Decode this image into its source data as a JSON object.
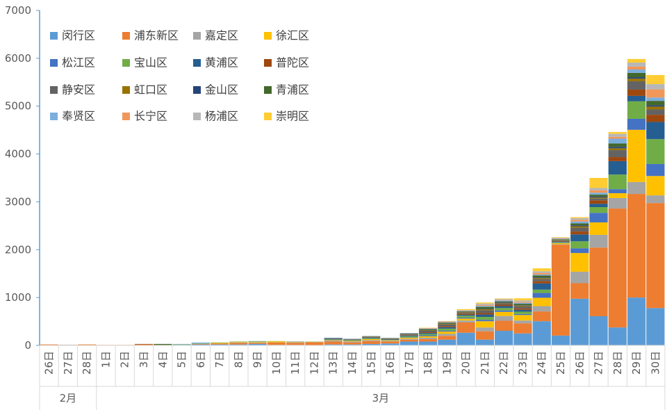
{
  "chart_data": {
    "type": "stacked_bar",
    "ylim": [
      0,
      7000
    ],
    "yticks": [
      0,
      1000,
      2000,
      3000,
      4000,
      5000,
      6000,
      7000
    ],
    "legend_position": "upper-left",
    "category_groups": [
      {
        "name": "2月",
        "categories": [
          "26日",
          "27日",
          "28日"
        ]
      },
      {
        "name": "3月",
        "categories": [
          "1日",
          "2日",
          "3日",
          "4日",
          "5日",
          "6日",
          "7日",
          "8日",
          "9日",
          "10日",
          "11日",
          "12日",
          "13日",
          "14日",
          "15日",
          "16日",
          "17日",
          "18日",
          "19日",
          "20日",
          "21日",
          "22日",
          "23日",
          "24日",
          "25日",
          "26日",
          "27日",
          "28日",
          "29日",
          "30日"
        ]
      }
    ],
    "series": [
      {
        "name": "闵行区",
        "color": "#5B9BD5",
        "values": [
          0,
          0,
          0,
          0,
          0,
          0,
          0,
          10,
          20,
          20,
          20,
          30,
          10,
          10,
          5,
          20,
          20,
          30,
          40,
          80,
          80,
          120,
          265,
          120,
          305,
          250,
          505,
          205,
          975,
          610,
          375,
          1000,
          780
        ]
      },
      {
        "name": "浦东新区",
        "color": "#ED7D31",
        "values": [
          20,
          10,
          20,
          10,
          10,
          20,
          10,
          0,
          10,
          20,
          30,
          20,
          50,
          40,
          60,
          60,
          40,
          60,
          40,
          40,
          50,
          80,
          215,
          175,
          210,
          210,
          205,
          1900,
          325,
          1435,
          2485,
          2165,
          2195
        ]
      },
      {
        "name": "嘉定区",
        "color": "#A5A5A5",
        "values": [
          0,
          5,
          0,
          0,
          0,
          0,
          0,
          0,
          0,
          0,
          10,
          10,
          5,
          10,
          5,
          20,
          20,
          20,
          10,
          20,
          30,
          40,
          40,
          80,
          100,
          60,
          110,
          10,
          240,
          265,
          220,
          250,
          160
        ]
      },
      {
        "name": "徐汇区",
        "color": "#FFC000",
        "values": [
          0,
          0,
          0,
          0,
          0,
          0,
          0,
          0,
          0,
          10,
          10,
          10,
          20,
          10,
          5,
          10,
          15,
          20,
          10,
          20,
          30,
          50,
          40,
          130,
          85,
          115,
          175,
          20,
          390,
          260,
          100,
          1090,
          405
        ]
      },
      {
        "name": "松江区",
        "color": "#4472C4",
        "values": [
          0,
          0,
          0,
          0,
          0,
          0,
          0,
          0,
          0,
          0,
          0,
          0,
          0,
          0,
          0,
          5,
          5,
          5,
          5,
          10,
          20,
          20,
          20,
          30,
          30,
          20,
          100,
          10,
          100,
          200,
          85,
          230,
          250
        ]
      },
      {
        "name": "宝山区",
        "color": "#70AD47",
        "values": [
          0,
          0,
          0,
          0,
          0,
          0,
          0,
          10,
          10,
          10,
          10,
          15,
          5,
          0,
          5,
          10,
          10,
          15,
          10,
          20,
          30,
          40,
          40,
          60,
          50,
          50,
          70,
          15,
          145,
          120,
          305,
          365,
          520
        ]
      },
      {
        "name": "黄浦区",
        "color": "#255E91",
        "values": [
          0,
          0,
          0,
          0,
          0,
          0,
          0,
          0,
          0,
          0,
          0,
          0,
          0,
          5,
          0,
          15,
          10,
          10,
          10,
          15,
          20,
          30,
          20,
          50,
          40,
          40,
          130,
          10,
          145,
          70,
          280,
          115,
          360
        ]
      },
      {
        "name": "普陀区",
        "color": "#9E480E",
        "values": [
          0,
          0,
          0,
          0,
          0,
          10,
          0,
          0,
          0,
          0,
          0,
          0,
          0,
          0,
          0,
          5,
          5,
          5,
          5,
          10,
          15,
          20,
          20,
          30,
          30,
          30,
          45,
          10,
          60,
          70,
          85,
          130,
          150
        ]
      },
      {
        "name": "静安区",
        "color": "#636363",
        "values": [
          0,
          0,
          0,
          0,
          0,
          0,
          0,
          0,
          0,
          0,
          0,
          0,
          0,
          5,
          0,
          5,
          5,
          15,
          10,
          15,
          30,
          40,
          20,
          60,
          30,
          40,
          45,
          15,
          80,
          40,
          145,
          175,
          110
        ]
      },
      {
        "name": "虹口区",
        "color": "#997300",
        "values": [
          0,
          0,
          0,
          0,
          0,
          0,
          0,
          0,
          0,
          0,
          0,
          0,
          0,
          0,
          0,
          0,
          0,
          5,
          5,
          5,
          10,
          10,
          10,
          20,
          10,
          15,
          20,
          10,
          30,
          20,
          40,
          55,
          60
        ]
      },
      {
        "name": "金山区",
        "color": "#264478",
        "values": [
          0,
          0,
          0,
          0,
          0,
          0,
          0,
          0,
          0,
          0,
          0,
          0,
          0,
          0,
          0,
          5,
          0,
          0,
          0,
          5,
          5,
          5,
          5,
          10,
          10,
          10,
          15,
          5,
          20,
          20,
          30,
          30,
          30
        ]
      },
      {
        "name": "青浦区",
        "color": "#43682B",
        "values": [
          0,
          0,
          0,
          0,
          0,
          0,
          20,
          0,
          0,
          0,
          0,
          0,
          0,
          0,
          0,
          0,
          5,
          5,
          5,
          10,
          20,
          20,
          15,
          40,
          20,
          30,
          40,
          10,
          40,
          40,
          70,
          90,
          90
        ]
      },
      {
        "name": "奉贤区",
        "color": "#7CAFDD",
        "values": [
          0,
          0,
          0,
          0,
          0,
          0,
          0,
          10,
          20,
          0,
          0,
          5,
          0,
          0,
          0,
          5,
          5,
          5,
          5,
          5,
          10,
          10,
          10,
          20,
          20,
          20,
          20,
          10,
          40,
          40,
          100,
          70,
          70
        ]
      },
      {
        "name": "长宁区",
        "color": "#F1975A",
        "values": [
          0,
          0,
          0,
          0,
          0,
          0,
          0,
          0,
          0,
          0,
          0,
          0,
          0,
          0,
          0,
          0,
          0,
          0,
          0,
          0,
          10,
          10,
          10,
          20,
          10,
          20,
          30,
          10,
          35,
          50,
          40,
          60,
          170
        ]
      },
      {
        "name": "杨浦区",
        "color": "#B7B7B7",
        "values": [
          0,
          0,
          0,
          0,
          0,
          0,
          0,
          0,
          0,
          0,
          0,
          0,
          0,
          0,
          0,
          0,
          0,
          5,
          5,
          5,
          5,
          10,
          10,
          30,
          20,
          30,
          40,
          10,
          35,
          50,
          60,
          85,
          110
        ]
      },
      {
        "name": "崇明区",
        "color": "#FFCD33",
        "values": [
          0,
          0,
          0,
          0,
          0,
          0,
          0,
          0,
          0,
          0,
          0,
          0,
          0,
          0,
          0,
          0,
          0,
          0,
          0,
          0,
          5,
          5,
          18,
          21,
          11,
          43,
          60,
          10,
          20,
          210,
          40,
          75,
          190
        ]
      }
    ]
  }
}
